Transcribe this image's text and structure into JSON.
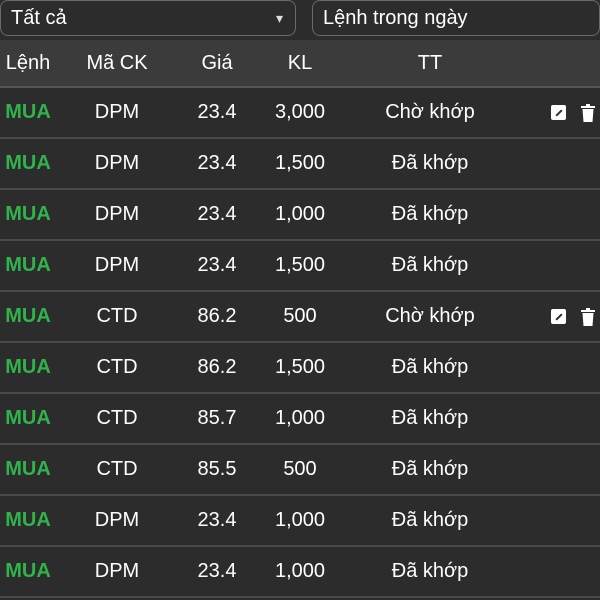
{
  "filters": {
    "side_select": "Tất cả",
    "type_select": "Lệnh trong ngày"
  },
  "table": {
    "headers": [
      "Lệnh",
      "Mã CK",
      "Giá",
      "KL",
      "TT"
    ],
    "rows": [
      {
        "side": "MUA",
        "symbol": "DPM",
        "price": "23.4",
        "qty": "3,000",
        "status": "Chờ khớp",
        "actions": true
      },
      {
        "side": "MUA",
        "symbol": "DPM",
        "price": "23.4",
        "qty": "1,500",
        "status": "Đã khớp",
        "actions": false
      },
      {
        "side": "MUA",
        "symbol": "DPM",
        "price": "23.4",
        "qty": "1,000",
        "status": "Đã khớp",
        "actions": false
      },
      {
        "side": "MUA",
        "symbol": "DPM",
        "price": "23.4",
        "qty": "1,500",
        "status": "Đã khớp",
        "actions": false
      },
      {
        "side": "MUA",
        "symbol": "CTD",
        "price": "86.2",
        "qty": "500",
        "status": "Chờ khớp",
        "actions": true
      },
      {
        "side": "MUA",
        "symbol": "CTD",
        "price": "86.2",
        "qty": "1,500",
        "status": "Đã khớp",
        "actions": false
      },
      {
        "side": "MUA",
        "symbol": "CTD",
        "price": "85.7",
        "qty": "1,000",
        "status": "Đã khớp",
        "actions": false
      },
      {
        "side": "MUA",
        "symbol": "CTD",
        "price": "85.5",
        "qty": "500",
        "status": "Đã khớp",
        "actions": false
      },
      {
        "side": "MUA",
        "symbol": "DPM",
        "price": "23.4",
        "qty": "1,000",
        "status": "Đã khớp",
        "actions": false
      },
      {
        "side": "MUA",
        "symbol": "DPM",
        "price": "23.4",
        "qty": "1,000",
        "status": "Đã khớp",
        "actions": false
      }
    ]
  },
  "colors": {
    "buy": "#2fb34a",
    "background": "#2c2c2c",
    "header": "#3b3b3b"
  },
  "icons": {
    "edit": "edit-icon",
    "delete": "trash-icon",
    "dropdown": "chevron-down-icon"
  }
}
